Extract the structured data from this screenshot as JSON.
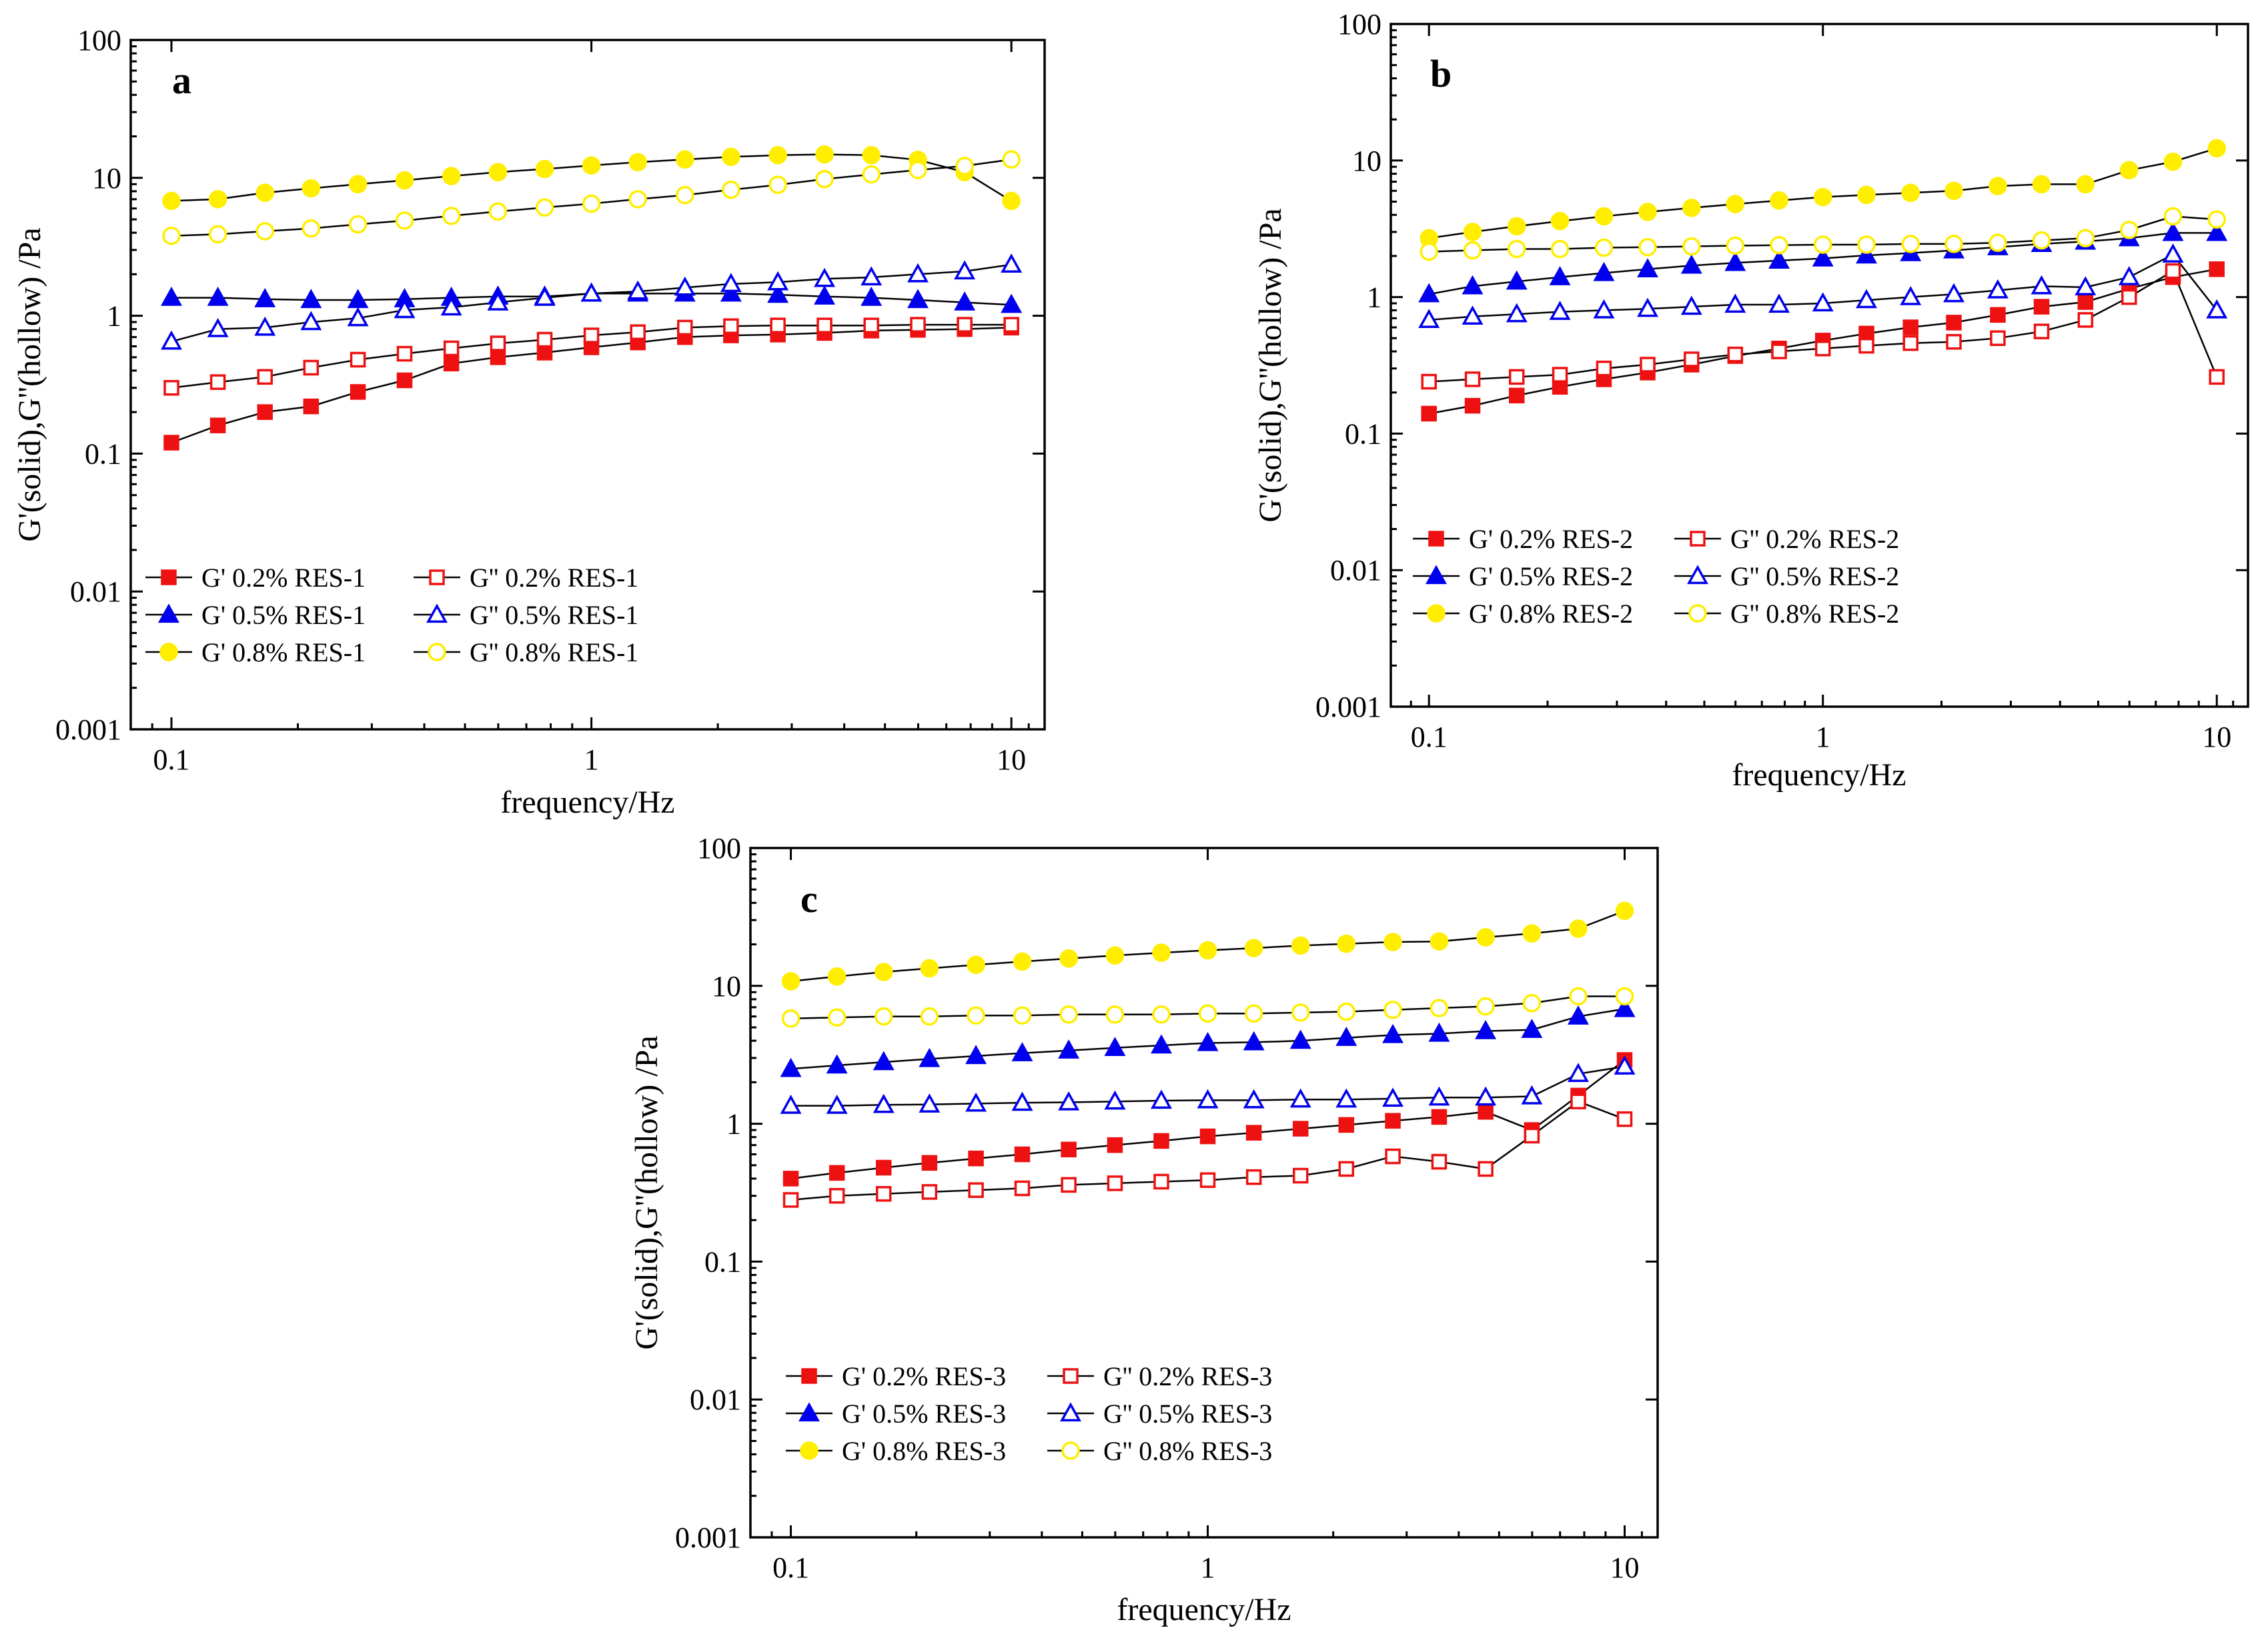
{
  "chart_data": [
    {
      "type": "line",
      "panel_label": "a",
      "title": "",
      "xlabel": "frequency/Hz",
      "ylabel": "G'(solid),G''(hollow) /Pa",
      "xscale": "log",
      "yscale": "log",
      "xlim": [
        0.08,
        12
      ],
      "ylim": [
        0.001,
        100
      ],
      "xticks": [
        0.1,
        1,
        10
      ],
      "xtick_labels": [
        "0.1",
        "1",
        "10"
      ],
      "yticks": [
        0.001,
        0.01,
        0.1,
        1,
        10,
        100
      ],
      "ytick_labels": [
        "0.001",
        "0.01",
        "0.1",
        "1",
        "10",
        "100"
      ],
      "legend_position": "lower-left",
      "x": [
        0.1,
        0.129,
        0.167,
        0.215,
        0.278,
        0.359,
        0.464,
        0.599,
        0.774,
        1.0,
        1.29,
        1.67,
        2.15,
        2.78,
        3.59,
        4.64,
        5.99,
        7.74,
        10.0
      ],
      "series": [
        {
          "name": "G' 0.2% RES-1",
          "color": "#ee1111",
          "marker": "square",
          "filled": true,
          "values": [
            0.12,
            0.16,
            0.2,
            0.22,
            0.28,
            0.34,
            0.45,
            0.5,
            0.54,
            0.59,
            0.64,
            0.7,
            0.72,
            0.73,
            0.75,
            0.78,
            0.79,
            0.8,
            0.82
          ]
        },
        {
          "name": "G'' 0.2% RES-1",
          "color": "#ee1111",
          "marker": "square",
          "filled": false,
          "values": [
            0.3,
            0.33,
            0.36,
            0.42,
            0.48,
            0.53,
            0.58,
            0.63,
            0.67,
            0.72,
            0.76,
            0.82,
            0.84,
            0.85,
            0.85,
            0.85,
            0.86,
            0.86,
            0.86
          ]
        },
        {
          "name": "G' 0.5% RES-1",
          "color": "#0000ee",
          "marker": "triangle",
          "filled": true,
          "values": [
            1.35,
            1.35,
            1.32,
            1.3,
            1.3,
            1.32,
            1.35,
            1.38,
            1.38,
            1.45,
            1.45,
            1.45,
            1.45,
            1.42,
            1.38,
            1.35,
            1.3,
            1.25,
            1.2
          ]
        },
        {
          "name": "G'' 0.5% RES-1",
          "color": "#0000ee",
          "marker": "triangle",
          "filled": false,
          "values": [
            0.65,
            0.8,
            0.82,
            0.9,
            0.96,
            1.1,
            1.15,
            1.25,
            1.35,
            1.45,
            1.5,
            1.6,
            1.7,
            1.75,
            1.85,
            1.9,
            2.0,
            2.1,
            2.35
          ]
        },
        {
          "name": "G' 0.8% RES-1",
          "color": "#ffee00",
          "marker": "circle",
          "filled": true,
          "values": [
            6.8,
            7.0,
            7.8,
            8.4,
            9.0,
            9.6,
            10.3,
            11.0,
            11.6,
            12.3,
            13.0,
            13.6,
            14.2,
            14.6,
            14.8,
            14.6,
            13.5,
            11.0,
            6.8
          ]
        },
        {
          "name": "G'' 0.8% RES-1",
          "color": "#ffee00",
          "marker": "circle",
          "filled": false,
          "values": [
            3.8,
            3.9,
            4.1,
            4.3,
            4.6,
            4.9,
            5.3,
            5.7,
            6.1,
            6.5,
            7.0,
            7.5,
            8.2,
            8.9,
            9.8,
            10.6,
            11.4,
            12.2,
            13.6
          ]
        }
      ]
    },
    {
      "type": "line",
      "panel_label": "b",
      "title": "",
      "xlabel": "frequency/Hz",
      "ylabel": "G'(solid),G''(hollow) /Pa",
      "xscale": "log",
      "yscale": "log",
      "xlim": [
        0.08,
        12
      ],
      "ylim": [
        0.001,
        100
      ],
      "xticks": [
        0.1,
        1,
        10
      ],
      "xtick_labels": [
        "0.1",
        "1",
        "10"
      ],
      "yticks": [
        0.001,
        0.01,
        0.1,
        1,
        10,
        100
      ],
      "ytick_labels": [
        "0.001",
        "0.01",
        "0.1",
        "1",
        "10",
        "100"
      ],
      "legend_position": "lower-left",
      "x": [
        0.1,
        0.129,
        0.167,
        0.215,
        0.278,
        0.359,
        0.464,
        0.599,
        0.774,
        1.0,
        1.29,
        1.67,
        2.15,
        2.78,
        3.59,
        4.64,
        5.99,
        7.74,
        10.0
      ],
      "series": [
        {
          "name": "G' 0.2% RES-2",
          "color": "#ee1111",
          "marker": "square",
          "filled": true,
          "values": [
            0.14,
            0.16,
            0.19,
            0.22,
            0.25,
            0.28,
            0.32,
            0.37,
            0.42,
            0.48,
            0.54,
            0.6,
            0.65,
            0.74,
            0.85,
            0.92,
            1.15,
            1.4,
            1.6
          ]
        },
        {
          "name": "G'' 0.2% RES-2",
          "color": "#ee1111",
          "marker": "square",
          "filled": false,
          "values": [
            0.24,
            0.25,
            0.26,
            0.27,
            0.3,
            0.32,
            0.35,
            0.38,
            0.4,
            0.42,
            0.44,
            0.46,
            0.47,
            0.5,
            0.56,
            0.68,
            1.0,
            1.55,
            0.26
          ]
        },
        {
          "name": "G' 0.5% RES-2",
          "color": "#0000ee",
          "marker": "triangle",
          "filled": true,
          "values": [
            1.05,
            1.2,
            1.3,
            1.4,
            1.5,
            1.6,
            1.7,
            1.78,
            1.85,
            1.92,
            2.02,
            2.1,
            2.2,
            2.32,
            2.45,
            2.55,
            2.7,
            2.95,
            2.95
          ]
        },
        {
          "name": "G'' 0.5% RES-2",
          "color": "#0000ee",
          "marker": "triangle",
          "filled": false,
          "values": [
            0.68,
            0.72,
            0.75,
            0.78,
            0.8,
            0.82,
            0.85,
            0.88,
            0.88,
            0.9,
            0.95,
            1.0,
            1.05,
            1.12,
            1.2,
            1.18,
            1.4,
            2.05,
            0.8
          ]
        },
        {
          "name": "G' 0.8% RES-2",
          "color": "#ffee00",
          "marker": "circle",
          "filled": true,
          "values": [
            2.7,
            3.0,
            3.3,
            3.6,
            3.9,
            4.2,
            4.5,
            4.8,
            5.1,
            5.4,
            5.6,
            5.8,
            6.0,
            6.5,
            6.7,
            6.7,
            8.5,
            9.8,
            12.3
          ]
        },
        {
          "name": "G'' 0.8% RES-2",
          "color": "#ffee00",
          "marker": "circle",
          "filled": false,
          "values": [
            2.15,
            2.2,
            2.25,
            2.25,
            2.3,
            2.32,
            2.35,
            2.38,
            2.4,
            2.42,
            2.42,
            2.45,
            2.45,
            2.5,
            2.6,
            2.7,
            3.1,
            3.9,
            3.7
          ]
        }
      ]
    },
    {
      "type": "line",
      "panel_label": "c",
      "title": "",
      "xlabel": "frequency/Hz",
      "ylabel": "G'(solid),G''(hollow) /Pa",
      "xscale": "log",
      "yscale": "log",
      "xlim": [
        0.08,
        12
      ],
      "ylim": [
        0.001,
        100
      ],
      "xticks": [
        0.1,
        1,
        10
      ],
      "xtick_labels": [
        "0.1",
        "1",
        "10"
      ],
      "yticks": [
        0.001,
        0.01,
        0.1,
        1,
        10,
        100
      ],
      "ytick_labels": [
        "0.001",
        "0.01",
        "0.1",
        "1",
        "10",
        "100"
      ],
      "legend_position": "lower-left",
      "x": [
        0.1,
        0.129,
        0.167,
        0.215,
        0.278,
        0.359,
        0.464,
        0.599,
        0.774,
        1.0,
        1.29,
        1.67,
        2.15,
        2.78,
        3.59,
        4.64,
        5.99,
        7.74,
        10.0
      ],
      "series": [
        {
          "name": "G' 0.2% RES-3",
          "color": "#ee1111",
          "marker": "square",
          "filled": true,
          "values": [
            0.4,
            0.44,
            0.48,
            0.52,
            0.56,
            0.6,
            0.65,
            0.7,
            0.75,
            0.81,
            0.86,
            0.92,
            0.98,
            1.05,
            1.12,
            1.22,
            0.9,
            1.6,
            2.9
          ]
        },
        {
          "name": "G'' 0.2% RES-3",
          "color": "#ee1111",
          "marker": "square",
          "filled": false,
          "values": [
            0.28,
            0.3,
            0.31,
            0.32,
            0.33,
            0.34,
            0.36,
            0.37,
            0.38,
            0.39,
            0.41,
            0.42,
            0.47,
            0.58,
            0.53,
            0.47,
            0.82,
            1.45,
            1.08
          ]
        },
        {
          "name": "G' 0.5% RES-3",
          "color": "#0000ee",
          "marker": "triangle",
          "filled": true,
          "values": [
            2.5,
            2.65,
            2.8,
            2.95,
            3.1,
            3.25,
            3.4,
            3.55,
            3.7,
            3.85,
            3.9,
            4.0,
            4.2,
            4.4,
            4.5,
            4.7,
            4.8,
            6.0,
            6.8
          ]
        },
        {
          "name": "G'' 0.5% RES-3",
          "color": "#0000ee",
          "marker": "triangle",
          "filled": false,
          "values": [
            1.35,
            1.35,
            1.37,
            1.38,
            1.4,
            1.42,
            1.43,
            1.45,
            1.47,
            1.48,
            1.48,
            1.5,
            1.5,
            1.52,
            1.55,
            1.55,
            1.58,
            2.3,
            2.6
          ]
        },
        {
          "name": "G' 0.8% RES-3",
          "color": "#ffee00",
          "marker": "circle",
          "filled": true,
          "values": [
            10.8,
            11.7,
            12.6,
            13.4,
            14.2,
            15.0,
            15.8,
            16.6,
            17.4,
            18.1,
            18.8,
            19.6,
            20.2,
            20.8,
            21.0,
            22.5,
            24.0,
            26.0,
            35.0
          ]
        },
        {
          "name": "G'' 0.8% RES-3",
          "color": "#ffee00",
          "marker": "circle",
          "filled": false,
          "values": [
            5.8,
            5.9,
            6.0,
            6.0,
            6.1,
            6.1,
            6.2,
            6.2,
            6.2,
            6.3,
            6.3,
            6.4,
            6.5,
            6.7,
            6.9,
            7.1,
            7.5,
            8.4,
            8.4
          ]
        }
      ]
    }
  ]
}
